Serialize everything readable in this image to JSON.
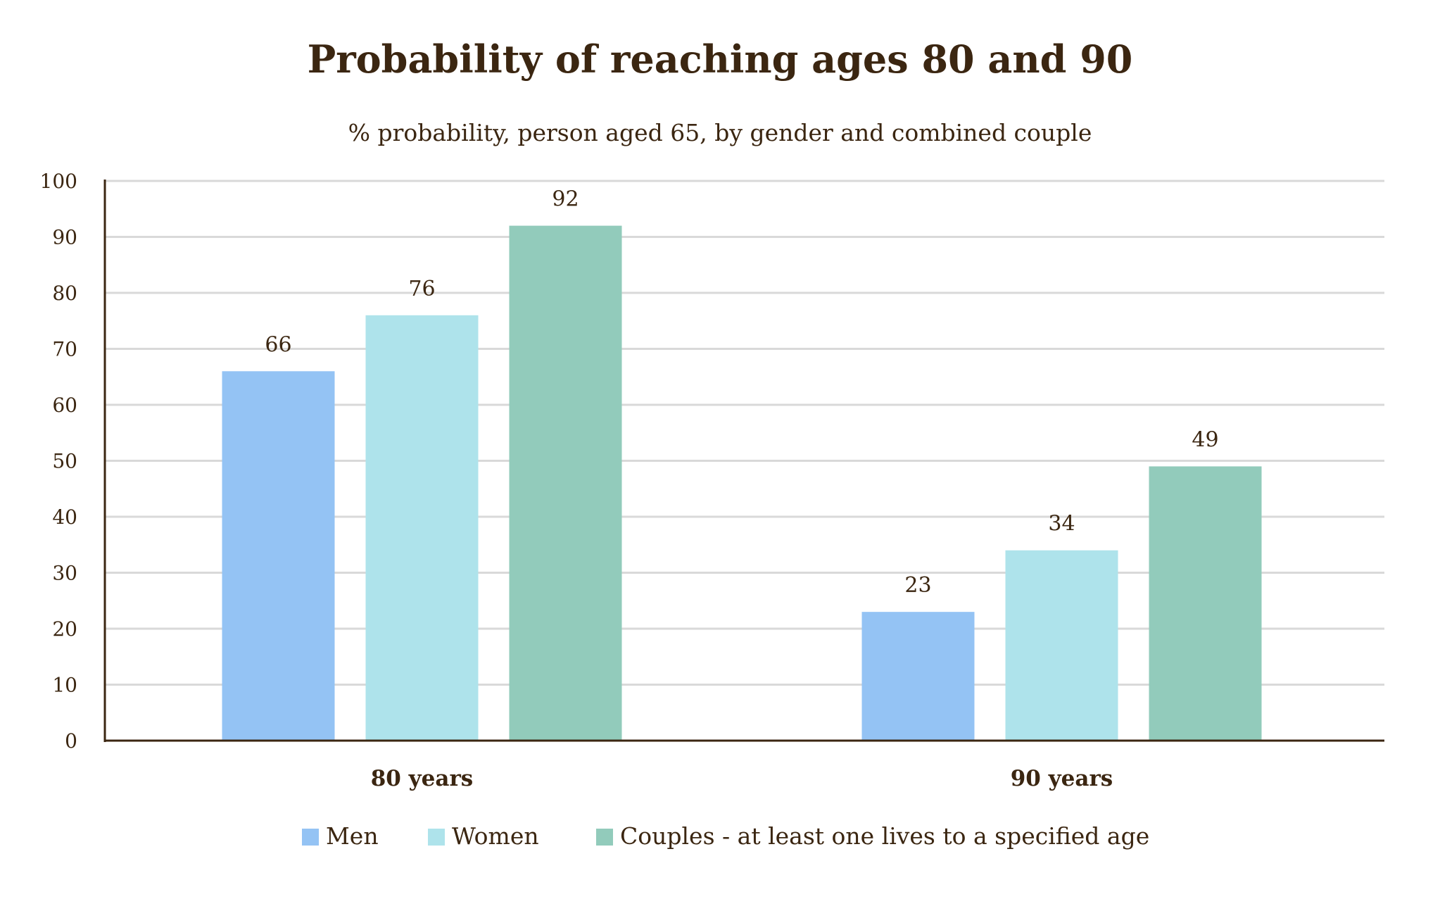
{
  "chart_data": {
    "type": "bar",
    "title": "Probability of reaching ages 80 and 90",
    "subtitle": "% probability, person aged 65, by gender and combined couple",
    "xlabel": "",
    "ylabel": "",
    "categories": [
      "80 years",
      "90 years"
    ],
    "series": [
      {
        "name": "Men",
        "color": "#94c3f4",
        "values": [
          66,
          23
        ]
      },
      {
        "name": "Women",
        "color": "#aee3eb",
        "values": [
          76,
          34
        ]
      },
      {
        "name": "Couples - at least one lives to a specified age",
        "color": "#92cbbb",
        "values": [
          92,
          49
        ]
      }
    ],
    "ylim": [
      0,
      100
    ],
    "yticks": [
      0,
      10,
      20,
      30,
      40,
      50,
      60,
      70,
      80,
      90,
      100
    ],
    "grid": true,
    "legend": "bottom",
    "data_labels": true
  },
  "colors": {
    "text": "#3b2611",
    "grid": "#d9d9d9",
    "axis": "#3b2611"
  }
}
